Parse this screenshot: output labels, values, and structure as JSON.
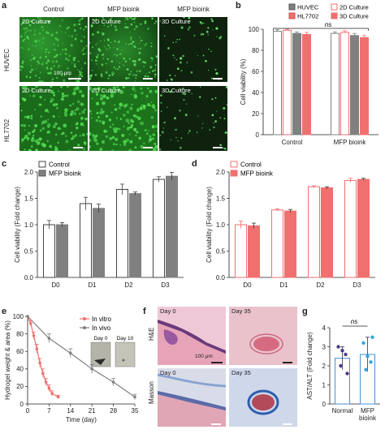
{
  "colors": {
    "gray": "#808080",
    "red": "#f07070",
    "dark": "#333333",
    "green": "#39b54a",
    "he_tissue": "#e9bdd0",
    "masson_tissue": "#c8d3e8"
  },
  "panel_a": {
    "label": "a",
    "col_headers": [
      "Control",
      "MFP bioink",
      "MFP bioink"
    ],
    "row_labels": [
      "HUVEC",
      "HL7702"
    ],
    "tiles": [
      [
        "2D Culture",
        "2D Culture",
        "3D Culture"
      ],
      [
        "2D Culture",
        "2D Culture",
        "3D Culture"
      ]
    ],
    "scale_text": "100 μm"
  },
  "panel_b": {
    "label": "b",
    "legend": [
      "HUVEC",
      "HL7702",
      "2D Culture",
      "3D Culture"
    ],
    "ns": "ns"
  },
  "panel_c": {
    "label": "c",
    "legend": [
      "Control",
      "MFP bioink"
    ]
  },
  "panel_d": {
    "label": "d",
    "legend": [
      "Control",
      "MFP bioink"
    ]
  },
  "panel_e": {
    "label": "e",
    "legend": [
      "In vitro",
      "In vivo"
    ],
    "inset_titles": [
      "Day 0",
      "Day 10"
    ]
  },
  "panel_f": {
    "label": "f",
    "row_labels": [
      "H&E",
      "Masson"
    ],
    "tiles": [
      [
        "Day 0",
        "Day 35"
      ],
      [
        "Day 0",
        "Day 35"
      ]
    ],
    "scale_text": "100 μm"
  },
  "panel_g": {
    "label": "g",
    "ns": "ns"
  },
  "chart_data": [
    {
      "id": "b",
      "type": "bar",
      "title": "",
      "xlabel": "",
      "ylabel": "Cell viability (%)",
      "categories": [
        "Control",
        "MFP bioink"
      ],
      "ylim": [
        0,
        100
      ],
      "yticks": [
        0,
        20,
        40,
        60,
        80,
        100
      ],
      "series": [
        {
          "name": "HUVEC 2D Culture",
          "values": [
            98,
            96
          ],
          "errors": [
            1.5,
            1.5
          ]
        },
        {
          "name": "HL7702 2D Culture",
          "values": [
            99,
            97
          ],
          "errors": [
            1,
            1.5
          ]
        },
        {
          "name": "HUVEC 3D Culture",
          "values": [
            96,
            94
          ],
          "errors": [
            1.5,
            2
          ]
        },
        {
          "name": "HL7702 3D Culture",
          "values": [
            95,
            92
          ],
          "errors": [
            2,
            2
          ]
        }
      ],
      "annotations": [
        "ns"
      ]
    },
    {
      "id": "c",
      "type": "bar",
      "title": "",
      "xlabel": "",
      "ylabel": "Cell viability (Fold change)",
      "categories": [
        "D0",
        "D1",
        "D2",
        "D3"
      ],
      "ylim": [
        0,
        2.0
      ],
      "yticks": [
        0.0,
        0.5,
        1.0,
        1.5,
        2.0
      ],
      "series": [
        {
          "name": "Control",
          "values": [
            1.0,
            1.4,
            1.67,
            1.86
          ],
          "errors": [
            0.08,
            0.12,
            0.1,
            0.05
          ]
        },
        {
          "name": "MFP bioink",
          "values": [
            1.0,
            1.31,
            1.59,
            1.92
          ],
          "errors": [
            0.04,
            0.08,
            0.03,
            0.07
          ]
        }
      ]
    },
    {
      "id": "d",
      "type": "bar",
      "title": "",
      "xlabel": "",
      "ylabel": "Cell viability (Fold change)",
      "categories": [
        "D0",
        "D1",
        "D2",
        "D3"
      ],
      "ylim": [
        0,
        2.0
      ],
      "yticks": [
        0.0,
        0.5,
        1.0,
        1.5,
        2.0
      ],
      "series": [
        {
          "name": "Control",
          "values": [
            1.0,
            1.28,
            1.72,
            1.84
          ],
          "errors": [
            0.07,
            0.02,
            0.02,
            0.04
          ]
        },
        {
          "name": "MFP bioink",
          "values": [
            0.98,
            1.26,
            1.7,
            1.86
          ],
          "errors": [
            0.05,
            0.03,
            0.02,
            0.02
          ]
        }
      ]
    },
    {
      "id": "e",
      "type": "line",
      "title": "",
      "xlabel": "Time (day)",
      "ylabel": "Hydrogel weight & area (%)",
      "xlim": [
        0,
        35
      ],
      "ylim": [
        0,
        100
      ],
      "xticks": [
        0,
        7,
        14,
        21,
        28,
        35
      ],
      "yticks": [
        0,
        20,
        40,
        60,
        80,
        100
      ],
      "series": [
        {
          "name": "In vitro",
          "x": [
            0,
            1,
            2,
            3,
            4,
            5,
            6,
            7,
            8,
            10
          ],
          "y": [
            100,
            92,
            78,
            63,
            47,
            35,
            25,
            18,
            12,
            8
          ],
          "errors": [
            0,
            3,
            4,
            5,
            5,
            5,
            4,
            4,
            3,
            2
          ]
        },
        {
          "name": "In vivo",
          "x": [
            0,
            7,
            14,
            21,
            28,
            35
          ],
          "y": [
            100,
            75,
            58,
            40,
            25,
            8
          ],
          "errors": [
            0,
            5,
            5,
            5,
            4,
            3
          ]
        }
      ]
    },
    {
      "id": "g",
      "type": "bar",
      "title": "",
      "xlabel": "",
      "ylabel": "AST/ALT (Fold change)",
      "categories": [
        "Normal",
        "MFP\nbioink"
      ],
      "ylim": [
        0,
        4
      ],
      "yticks": [
        0,
        1,
        2,
        3,
        4
      ],
      "series": [
        {
          "name": "",
          "values": [
            2.4,
            2.6
          ],
          "errors": [
            0.6,
            0.9
          ],
          "points": [
            [
              3.0,
              2.6,
              2.0,
              1.6,
              2.8
            ],
            [
              3.2,
              2.2,
              1.8,
              3.5,
              2.5
            ]
          ]
        }
      ],
      "annotations": [
        "ns"
      ]
    }
  ]
}
